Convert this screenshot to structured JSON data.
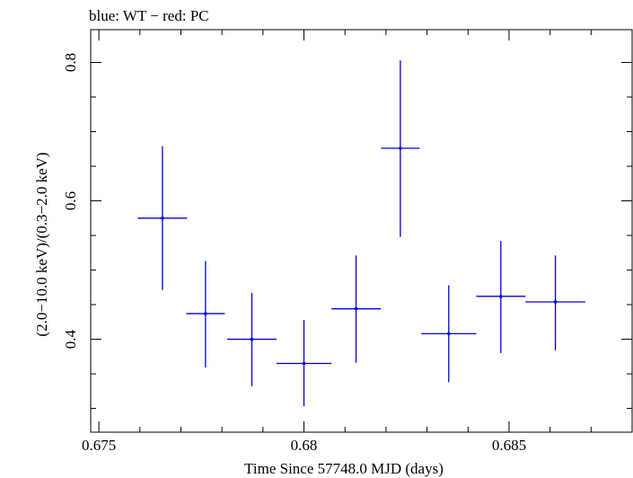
{
  "chart_data": {
    "type": "scatter",
    "title": "blue: WT − red: PC",
    "xlabel": "Time Since 57748.0 MJD (days)",
    "ylabel": "(2.0−10.0 keV)/(0.3−2.0 keV)",
    "xlim": [
      0.6748,
      0.688
    ],
    "ylim": [
      0.2657,
      0.8474
    ],
    "x_ticks": [
      {
        "value": 0.675,
        "label": "0.675"
      },
      {
        "value": 0.68,
        "label": "0.68"
      },
      {
        "value": 0.685,
        "label": "0.685"
      }
    ],
    "y_ticks": [
      {
        "value": 0.4,
        "label": "0.4"
      },
      {
        "value": 0.6,
        "label": "0.6"
      },
      {
        "value": 0.8,
        "label": "0.8"
      }
    ],
    "grid": false,
    "series": [
      {
        "color": "#0000e0",
        "points": [
          {
            "x": 0.67655,
            "xerr": 0.0006,
            "y": 0.575,
            "ylo": 0.471,
            "yhi": 0.679
          },
          {
            "x": 0.6776,
            "xerr": 0.00047,
            "y": 0.437,
            "ylo": 0.359,
            "yhi": 0.513
          },
          {
            "x": 0.67873,
            "xerr": 0.0006,
            "y": 0.4,
            "ylo": 0.332,
            "yhi": 0.467
          },
          {
            "x": 0.68,
            "xerr": 0.00067,
            "y": 0.365,
            "ylo": 0.303,
            "yhi": 0.428
          },
          {
            "x": 0.68127,
            "xerr": 0.0006,
            "y": 0.444,
            "ylo": 0.366,
            "yhi": 0.521
          },
          {
            "x": 0.68235,
            "xerr": 0.00047,
            "y": 0.676,
            "ylo": 0.548,
            "yhi": 0.803
          },
          {
            "x": 0.68353,
            "xerr": 0.00067,
            "y": 0.408,
            "ylo": 0.338,
            "yhi": 0.478
          },
          {
            "x": 0.6848,
            "xerr": 0.0006,
            "y": 0.462,
            "ylo": 0.38,
            "yhi": 0.542
          },
          {
            "x": 0.68613,
            "xerr": 0.00073,
            "y": 0.454,
            "ylo": 0.384,
            "yhi": 0.521
          }
        ]
      }
    ]
  }
}
